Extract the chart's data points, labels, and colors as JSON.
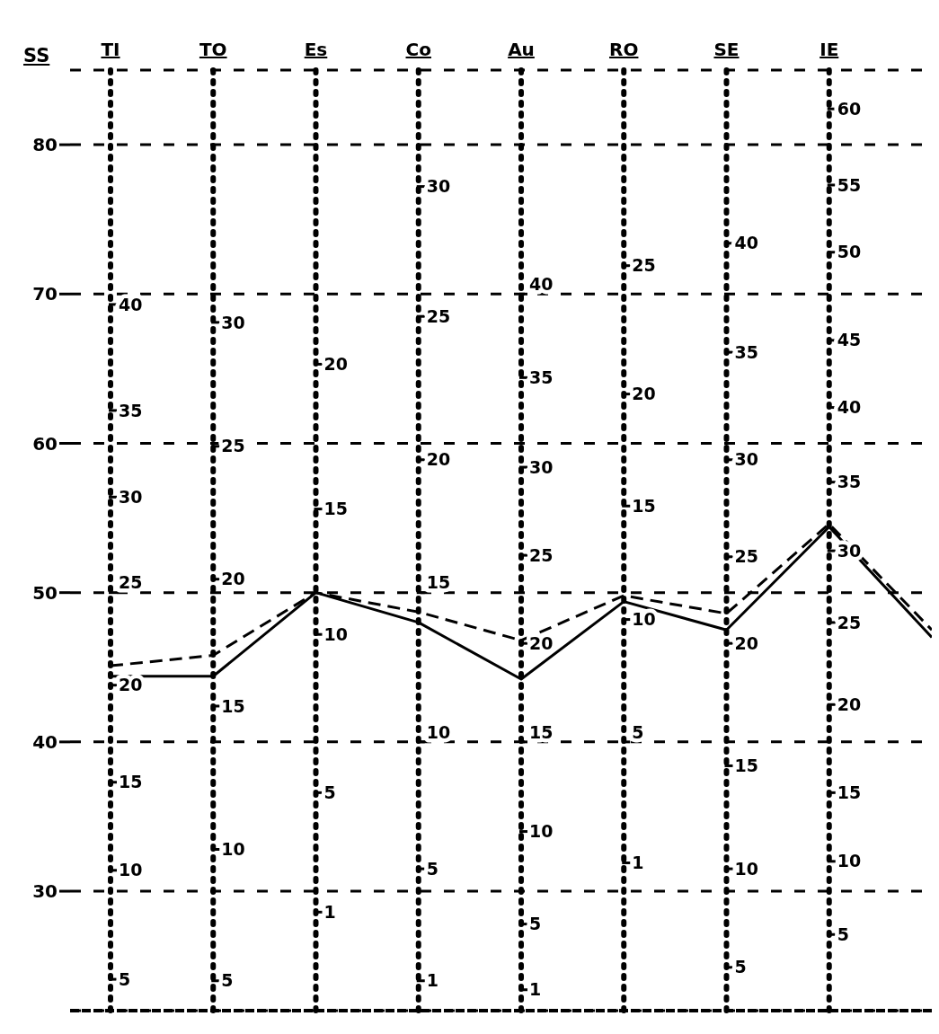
{
  "chart_data": {
    "type": "line",
    "ylabel": "SS",
    "categories": [
      "TI",
      "TO",
      "Es",
      "Co",
      "Au",
      "RO",
      "SE",
      "IE",
      null
    ],
    "series": [
      {
        "color": "#000000",
        "line_style": "solid",
        "values": [
          44.4,
          44.4,
          50,
          48,
          44.2,
          49.4,
          47.5,
          54.4,
          47
        ]
      },
      {
        "color": "#000000",
        "line_style": "dashed",
        "values": [
          45.1,
          45.8,
          50,
          48.7,
          46.8,
          49.8,
          48.6,
          54.6,
          47.5
        ]
      }
    ],
    "ylim": [
      22,
      85
    ],
    "yticks": [
      30,
      40,
      50,
      60,
      70,
      80
    ],
    "grid": "y",
    "marker": "none",
    "legend": false,
    "ref_lines": [
      {
        "axis": "x",
        "value": "TI",
        "line_style": "dotted"
      },
      {
        "axis": "x",
        "value": "TO",
        "line_style": "dotted"
      },
      {
        "axis": "x",
        "value": "Es",
        "line_style": "dotted"
      },
      {
        "axis": "x",
        "value": "Co",
        "line_style": "dotted"
      },
      {
        "axis": "x",
        "value": "Au",
        "line_style": "dotted"
      },
      {
        "axis": "x",
        "value": "RO",
        "line_style": "dotted"
      },
      {
        "axis": "x",
        "value": "SE",
        "line_style": "dotted"
      },
      {
        "axis": "x",
        "value": "IE",
        "line_style": "dotted"
      }
    ],
    "annotations": [
      {
        "text": "40",
        "x": "TI",
        "y": 69.3
      },
      {
        "text": "35",
        "x": "TI",
        "y": 62.2
      },
      {
        "text": "30",
        "x": "TI",
        "y": 56.4
      },
      {
        "text": "25",
        "x": "TI",
        "y": 50
      },
      {
        "text": "20",
        "x": "TI",
        "y": 43.8
      },
      {
        "text": "15",
        "x": "TI",
        "y": 37.3
      },
      {
        "text": "10",
        "x": "TI",
        "y": 31.4
      },
      {
        "text": "5",
        "x": "TI",
        "y": 24.1
      },
      {
        "text": "30",
        "x": "TO",
        "y": 68.1
      },
      {
        "text": "25",
        "x": "TO",
        "y": 59.8
      },
      {
        "text": "20",
        "x": "TO",
        "y": 50.9
      },
      {
        "text": "15",
        "x": "TO",
        "y": 42.4
      },
      {
        "text": "10",
        "x": "TO",
        "y": 32.8
      },
      {
        "text": "5",
        "x": "TO",
        "y": 24
      },
      {
        "text": "20",
        "x": "Es",
        "y": 65.3
      },
      {
        "text": "15",
        "x": "Es",
        "y": 55.6
      },
      {
        "text": "10",
        "x": "Es",
        "y": 47.2
      },
      {
        "text": "5",
        "x": "Es",
        "y": 36.6
      },
      {
        "text": "1",
        "x": "Es",
        "y": 28.6
      },
      {
        "text": "30",
        "x": "Co",
        "y": 77.2
      },
      {
        "text": "25",
        "x": "Co",
        "y": 68.5
      },
      {
        "text": "20",
        "x": "Co",
        "y": 58.9
      },
      {
        "text": "15",
        "x": "Co",
        "y": 50
      },
      {
        "text": "10",
        "x": "Co",
        "y": 40
      },
      {
        "text": "5",
        "x": "Co",
        "y": 31.5
      },
      {
        "text": "1",
        "x": "Co",
        "y": 24
      },
      {
        "text": "40",
        "x": "Au",
        "y": 70
      },
      {
        "text": "35",
        "x": "Au",
        "y": 64.4
      },
      {
        "text": "30",
        "x": "Au",
        "y": 58.4
      },
      {
        "text": "25",
        "x": "Au",
        "y": 52.5
      },
      {
        "text": "20",
        "x": "Au",
        "y": 46.6
      },
      {
        "text": "15",
        "x": "Au",
        "y": 40
      },
      {
        "text": "10",
        "x": "Au",
        "y": 34
      },
      {
        "text": "5",
        "x": "Au",
        "y": 27.8
      },
      {
        "text": "1",
        "x": "Au",
        "y": 23.4
      },
      {
        "text": "25",
        "x": "RO",
        "y": 71.9
      },
      {
        "text": "20",
        "x": "RO",
        "y": 63.3
      },
      {
        "text": "15",
        "x": "RO",
        "y": 55.8
      },
      {
        "text": "10",
        "x": "RO",
        "y": 48.2
      },
      {
        "text": "5",
        "x": "RO",
        "y": 40
      },
      {
        "text": "1",
        "x": "RO",
        "y": 31.9
      },
      {
        "text": "40",
        "x": "SE",
        "y": 73.4
      },
      {
        "text": "35",
        "x": "SE",
        "y": 66.1
      },
      {
        "text": "30",
        "x": "SE",
        "y": 58.9
      },
      {
        "text": "25",
        "x": "SE",
        "y": 52.4
      },
      {
        "text": "20",
        "x": "SE",
        "y": 46.6
      },
      {
        "text": "15",
        "x": "SE",
        "y": 38.4
      },
      {
        "text": "10",
        "x": "SE",
        "y": 31.5
      },
      {
        "text": "5",
        "x": "SE",
        "y": 24.9
      },
      {
        "text": "60",
        "x": "IE",
        "y": 82.4
      },
      {
        "text": "55",
        "x": "IE",
        "y": 77.3
      },
      {
        "text": "50",
        "x": "IE",
        "y": 72.8
      },
      {
        "text": "45",
        "x": "IE",
        "y": 66.9
      },
      {
        "text": "40",
        "x": "IE",
        "y": 62.4
      },
      {
        "text": "35",
        "x": "IE",
        "y": 57.4
      },
      {
        "text": "30",
        "x": "IE",
        "y": 52.8
      },
      {
        "text": "25",
        "x": "IE",
        "y": 48
      },
      {
        "text": "20",
        "x": "IE",
        "y": 42.5
      },
      {
        "text": "15",
        "x": "IE",
        "y": 36.6
      },
      {
        "text": "10",
        "x": "IE",
        "y": 32
      },
      {
        "text": "5",
        "x": "IE",
        "y": 27.1
      }
    ]
  }
}
